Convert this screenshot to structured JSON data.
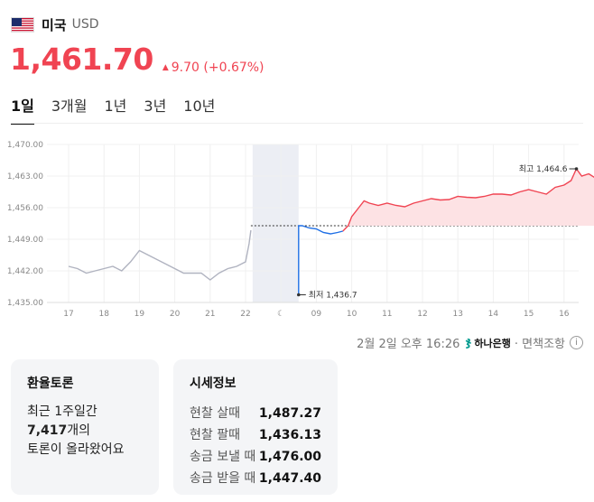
{
  "header": {
    "country": "미국",
    "currency": "USD"
  },
  "quote": {
    "price": "1,461.70",
    "change": "9.70 (+0.67%)",
    "direction": "up",
    "color": "#f04452"
  },
  "tabs": [
    {
      "label": "1일",
      "active": true
    },
    {
      "label": "3개월",
      "active": false
    },
    {
      "label": "1년",
      "active": false
    },
    {
      "label": "3년",
      "active": false
    },
    {
      "label": "10년",
      "active": false
    }
  ],
  "chart_data": {
    "type": "line",
    "y_ticks": [
      "1,470.00",
      "1,463.00",
      "1,456.00",
      "1,449.00",
      "1,442.00",
      "1,435.00"
    ],
    "ylim": [
      1435,
      1470
    ],
    "x_ticks": [
      "17",
      "18",
      "19",
      "20",
      "21",
      "22",
      "",
      "09",
      "10",
      "11",
      "12",
      "13",
      "14",
      "15",
      "16"
    ],
    "night_icon": "moon-icon",
    "previous_close": 1452.0,
    "annotations": {
      "high_label": "최고 1,464.6",
      "low_label": "최저 1,436.7",
      "high_value": 1464.6,
      "low_value": 1436.7
    },
    "series": [
      {
        "role": "previous",
        "color": "#b0b3c0",
        "points": [
          [
            0,
            1443
          ],
          [
            0.25,
            1442.5
          ],
          [
            0.5,
            1441.5
          ],
          [
            0.75,
            1442
          ],
          [
            1,
            1442.5
          ],
          [
            1.25,
            1443
          ],
          [
            1.5,
            1442
          ],
          [
            1.75,
            1444
          ],
          [
            2,
            1446.5
          ],
          [
            2.25,
            1445.5
          ],
          [
            2.5,
            1444.5
          ],
          [
            2.75,
            1443.5
          ],
          [
            3,
            1442.5
          ],
          [
            3.25,
            1441.5
          ],
          [
            3.5,
            1441.5
          ],
          [
            3.75,
            1441.5
          ],
          [
            4,
            1440
          ],
          [
            4.25,
            1441.5
          ],
          [
            4.5,
            1442.5
          ],
          [
            4.75,
            1443
          ],
          [
            5,
            1444
          ],
          [
            5.1,
            1448
          ],
          [
            5.15,
            1451
          ]
        ]
      },
      {
        "role": "today-down",
        "color": "#1f6fe5",
        "points": [
          [
            6.5,
            1436.7
          ],
          [
            6.5,
            1452
          ],
          [
            6.6,
            1452
          ],
          [
            6.8,
            1451.5
          ],
          [
            7.0,
            1451.3
          ],
          [
            7.2,
            1450.5
          ],
          [
            7.4,
            1450.2
          ],
          [
            7.6,
            1450.5
          ],
          [
            7.75,
            1450.8
          ]
        ]
      },
      {
        "role": "today-up",
        "color": "#f04452",
        "points": [
          [
            7.75,
            1450.8
          ],
          [
            7.9,
            1452
          ],
          [
            8.0,
            1454
          ],
          [
            8.2,
            1456
          ],
          [
            8.35,
            1457.5
          ],
          [
            8.5,
            1457
          ],
          [
            8.75,
            1456.5
          ],
          [
            9.0,
            1457
          ],
          [
            9.25,
            1456.5
          ],
          [
            9.5,
            1456.2
          ],
          [
            9.75,
            1457
          ],
          [
            10.0,
            1457.5
          ],
          [
            10.25,
            1458
          ],
          [
            10.5,
            1457.7
          ],
          [
            10.75,
            1457.8
          ],
          [
            11.0,
            1458.5
          ],
          [
            11.25,
            1458.3
          ],
          [
            11.5,
            1458.2
          ],
          [
            11.75,
            1458.5
          ],
          [
            12.0,
            1459
          ],
          [
            12.25,
            1459
          ],
          [
            12.5,
            1458.8
          ],
          [
            12.75,
            1459.5
          ],
          [
            13.0,
            1460
          ],
          [
            13.25,
            1459.5
          ],
          [
            13.5,
            1459
          ],
          [
            13.75,
            1460.5
          ],
          [
            14.0,
            1461
          ],
          [
            14.2,
            1462
          ],
          [
            14.35,
            1464.6
          ],
          [
            14.5,
            1463
          ],
          [
            14.7,
            1463.5
          ],
          [
            14.9,
            1462.5
          ],
          [
            15.1,
            1462.2
          ],
          [
            15.25,
            1462.8
          ],
          [
            15.45,
            1461.8
          ]
        ]
      }
    ]
  },
  "timestamp": {
    "date_text": "2월 2일 오후 16:26",
    "bank": "하나은행",
    "disclaimer": "· 면책조항"
  },
  "discussion": {
    "title": "환율토론",
    "line1": "최근 1주일간",
    "count": "7,417",
    "count_suffix": "개의",
    "line3": "토론이 올라왔어요"
  },
  "market_info": {
    "title": "시세정보",
    "rows": [
      {
        "label": "현찰 살때",
        "value": "1,487.27"
      },
      {
        "label": "현찰 팔때",
        "value": "1,436.13"
      },
      {
        "label": "송금 보낼 때",
        "value": "1,476.00"
      },
      {
        "label": "송금 받을 때",
        "value": "1,447.40"
      }
    ]
  }
}
